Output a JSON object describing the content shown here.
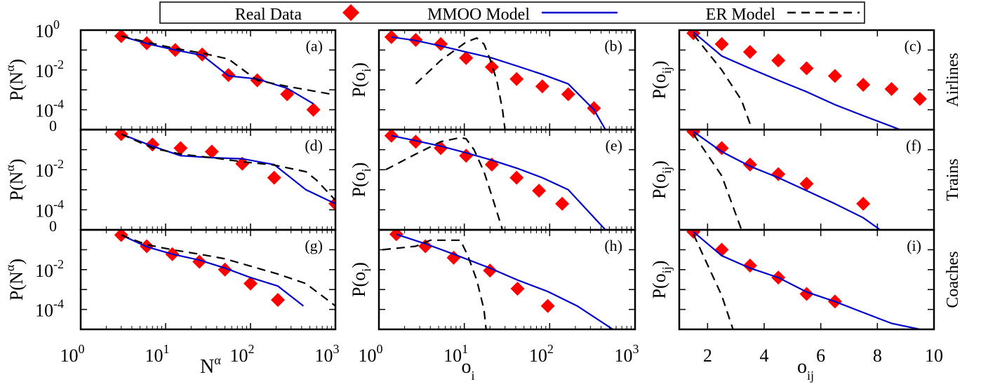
{
  "legend": {
    "entries": [
      {
        "label": "Real Data",
        "style": "diamond",
        "color": "#ff0000"
      },
      {
        "label": "MMOO Model",
        "style": "solid",
        "color": "#0000cc"
      },
      {
        "label": "ER Model",
        "style": "dashed",
        "color": "#000000"
      }
    ]
  },
  "rows": [
    "Airlines",
    "Trains",
    "Coaches"
  ],
  "columns": [
    {
      "ylabel_base": "P(N",
      "ylabel_sup": "α",
      "ylabel_close": ")",
      "xlabel_base": "N",
      "xlabel_sup": "α",
      "xlabel_sub": "",
      "xscale": "log",
      "xticks": [
        "0",
        "1",
        "2",
        "3"
      ]
    },
    {
      "ylabel_base": "P(o",
      "ylabel_sub": "i",
      "ylabel_close": ")",
      "xlabel_base": "o",
      "xlabel_sub": "i",
      "xscale": "log",
      "xticks": [
        "0",
        "1",
        "2",
        "3"
      ]
    },
    {
      "ylabel_base": "P(o",
      "ylabel_sub": "ij",
      "ylabel_close": ")",
      "xlabel_base": "o",
      "xlabel_sub": "ij",
      "xscale": "linear",
      "xticks": [
        "2",
        "4",
        "6",
        "8",
        "10"
      ]
    }
  ],
  "yticks_col0": [
    "0",
    "-2",
    "-4"
  ],
  "ytick_zero_label": "0",
  "tick_base": "10",
  "chart_data": [
    {
      "type": "line",
      "panel": "(a)",
      "row": "Airlines",
      "xscale": "log",
      "yscale": "log",
      "xlim": [
        1,
        1000
      ],
      "ylim": [
        1e-05,
        1
      ],
      "series": [
        {
          "name": "Real Data",
          "x": [
            3,
            6,
            13,
            27,
            55,
            120,
            270,
            550
          ],
          "y": [
            0.5,
            0.22,
            0.1,
            0.06,
            0.0055,
            0.003,
            0.0006,
            0.0001
          ]
        },
        {
          "name": "MMOO Model",
          "x": [
            3,
            6,
            13,
            27,
            55,
            120,
            270,
            550
          ],
          "y": [
            0.5,
            0.21,
            0.1,
            0.055,
            0.005,
            0.0035,
            0.0012,
            0.0002
          ]
        },
        {
          "name": "ER Model",
          "x": [
            3,
            6,
            13,
            27,
            55,
            120,
            270,
            900
          ],
          "y": [
            0.5,
            0.25,
            0.12,
            0.07,
            0.035,
            0.003,
            0.0015,
            0.0006
          ]
        }
      ]
    },
    {
      "type": "line",
      "panel": "(b)",
      "row": "Airlines",
      "xscale": "log",
      "yscale": "log",
      "xlim": [
        1,
        1000
      ],
      "ylim": [
        1e-05,
        1
      ],
      "series": [
        {
          "name": "Real Data",
          "x": [
            1.4,
            2.7,
            5.3,
            10.5,
            21,
            41,
            82,
            165,
            330
          ],
          "y": [
            0.45,
            0.32,
            0.2,
            0.04,
            0.014,
            0.0035,
            0.0015,
            0.0006,
            0.00012
          ]
        },
        {
          "name": "MMOO Model",
          "x": [
            1.4,
            2.7,
            5.3,
            10.5,
            21,
            41,
            82,
            165,
            330,
            450
          ],
          "y": [
            0.45,
            0.3,
            0.16,
            0.08,
            0.04,
            0.016,
            0.006,
            0.002,
            0.0001,
            1e-05
          ]
        },
        {
          "name": "ER Model",
          "x": [
            2.7,
            5.3,
            10.5,
            14,
            17,
            20,
            24,
            28,
            30
          ],
          "y": [
            0.002,
            0.03,
            0.25,
            0.4,
            0.2,
            0.035,
            0.003,
            0.0001,
            1e-05
          ]
        }
      ]
    },
    {
      "type": "line",
      "panel": "(c)",
      "row": "Airlines",
      "xscale": "linear",
      "yscale": "log",
      "xlim": [
        1,
        10
      ],
      "ylim": [
        1e-05,
        1
      ],
      "series": [
        {
          "name": "Real Data",
          "x": [
            1.5,
            2.5,
            3.5,
            4.5,
            5.5,
            6.5,
            7.5,
            8.5,
            9.5
          ],
          "y": [
            0.7,
            0.2,
            0.08,
            0.03,
            0.012,
            0.005,
            0.0018,
            0.0011,
            0.00035
          ]
        },
        {
          "name": "MMOO Model",
          "x": [
            1.5,
            2.5,
            3.5,
            4.5,
            5.5,
            6.5,
            7.5,
            8.8
          ],
          "y": [
            0.8,
            0.05,
            0.012,
            0.003,
            0.0008,
            0.00018,
            5e-05,
            1e-05
          ]
        },
        {
          "name": "ER Model",
          "x": [
            1.5,
            2.5,
            3.2,
            3.5,
            3.5
          ],
          "y": [
            0.6,
            0.01,
            0.0003,
            2e-05,
            1e-05
          ]
        }
      ]
    },
    {
      "type": "line",
      "panel": "(d)",
      "row": "Trains",
      "xscale": "log",
      "yscale": "log",
      "xlim": [
        1,
        1000
      ],
      "ylim": [
        1e-05,
        1
      ],
      "series": [
        {
          "name": "Real Data",
          "x": [
            3,
            7,
            15,
            35,
            80,
            190,
            1000
          ],
          "y": [
            0.6,
            0.18,
            0.12,
            0.08,
            0.02,
            0.004,
            0.0002
          ]
        },
        {
          "name": "MMOO Model",
          "x": [
            3,
            7,
            15,
            35,
            80,
            190,
            450,
            1000
          ],
          "y": [
            0.6,
            0.15,
            0.05,
            0.04,
            0.035,
            0.018,
            0.001,
            0.0002
          ]
        },
        {
          "name": "ER Model",
          "x": [
            3,
            7,
            15,
            35,
            80,
            190,
            450,
            600,
            1000
          ],
          "y": [
            0.6,
            0.12,
            0.06,
            0.04,
            0.025,
            0.017,
            0.008,
            0.003,
            0.0003
          ]
        }
      ]
    },
    {
      "type": "line",
      "panel": "(e)",
      "row": "Trains",
      "xscale": "log",
      "yscale": "log",
      "xlim": [
        1,
        1000
      ],
      "ylim": [
        1e-05,
        1
      ],
      "series": [
        {
          "name": "Real Data",
          "x": [
            1.4,
            2.7,
            5.3,
            10.5,
            21,
            41,
            75,
            140
          ],
          "y": [
            0.5,
            0.25,
            0.12,
            0.05,
            0.018,
            0.004,
            0.0009,
            0.0002
          ]
        },
        {
          "name": "MMOO Model",
          "x": [
            1.4,
            2.7,
            5.3,
            10.5,
            21,
            41,
            82,
            165,
            450
          ],
          "y": [
            0.5,
            0.28,
            0.15,
            0.07,
            0.03,
            0.012,
            0.004,
            0.001,
            1e-05
          ]
        },
        {
          "name": "ER Model",
          "x": [
            1.2,
            2.7,
            5.3,
            9,
            10.5,
            13,
            17,
            21,
            28
          ],
          "y": [
            0.01,
            0.06,
            0.25,
            0.4,
            0.35,
            0.1,
            0.008,
            0.0005,
            1e-05
          ]
        }
      ]
    },
    {
      "type": "line",
      "panel": "(f)",
      "row": "Trains",
      "xscale": "linear",
      "yscale": "log",
      "xlim": [
        1,
        10
      ],
      "ylim": [
        1e-05,
        1
      ],
      "series": [
        {
          "name": "Real Data",
          "x": [
            1.5,
            2.5,
            3.5,
            4.5,
            5.5,
            7.5
          ],
          "y": [
            0.8,
            0.12,
            0.018,
            0.006,
            0.002,
            0.0002
          ]
        },
        {
          "name": "MMOO Model",
          "x": [
            1.5,
            2.5,
            3.5,
            4.5,
            5.5,
            6.5,
            7.5,
            8.1
          ],
          "y": [
            0.8,
            0.08,
            0.015,
            0.004,
            0.0009,
            0.0002,
            4e-05,
            1e-05
          ]
        },
        {
          "name": "ER Model",
          "x": [
            1.5,
            2.5,
            3.2
          ],
          "y": [
            0.6,
            0.005,
            1e-05
          ]
        }
      ]
    },
    {
      "type": "line",
      "panel": "(g)",
      "row": "Coaches",
      "xscale": "log",
      "yscale": "log",
      "xlim": [
        1,
        1000
      ],
      "ylim": [
        1e-05,
        1
      ],
      "series": [
        {
          "name": "Real Data",
          "x": [
            3,
            6,
            12,
            25,
            50,
            100,
            210
          ],
          "y": [
            0.55,
            0.15,
            0.06,
            0.025,
            0.01,
            0.002,
            0.0003
          ]
        },
        {
          "name": "MMOO Model",
          "x": [
            3,
            6,
            12,
            25,
            50,
            100,
            210,
            420
          ],
          "y": [
            0.55,
            0.14,
            0.06,
            0.03,
            0.012,
            0.004,
            0.0015,
            0.00015
          ]
        },
        {
          "name": "ER Model",
          "x": [
            3,
            6,
            12,
            25,
            50,
            100,
            210,
            450,
            1000
          ],
          "y": [
            0.55,
            0.18,
            0.1,
            0.06,
            0.035,
            0.015,
            0.006,
            0.002,
            0.00015
          ]
        }
      ]
    },
    {
      "type": "line",
      "panel": "(h)",
      "row": "Coaches",
      "xscale": "log",
      "yscale": "log",
      "xlim": [
        1,
        1000
      ],
      "ylim": [
        1e-05,
        1
      ],
      "series": [
        {
          "name": "Real Data",
          "x": [
            1.6,
            3.5,
            7.5,
            20,
            42,
            95
          ],
          "y": [
            0.6,
            0.15,
            0.04,
            0.009,
            0.0011,
            0.00015
          ]
        },
        {
          "name": "MMOO Model",
          "x": [
            1.6,
            3.5,
            7.5,
            20,
            42,
            95,
            210,
            550
          ],
          "y": [
            0.6,
            0.2,
            0.06,
            0.012,
            0.003,
            0.0008,
            0.00015,
            1e-05
          ]
        },
        {
          "name": "ER Model",
          "x": [
            1.1,
            2.7,
            4,
            6.5,
            9,
            11,
            14,
            17,
            18
          ],
          "y": [
            0.1,
            0.15,
            0.3,
            0.3,
            0.3,
            0.05,
            0.003,
            0.0001,
            1e-05
          ]
        }
      ]
    },
    {
      "type": "line",
      "panel": "(i)",
      "row": "Coaches",
      "xscale": "linear",
      "yscale": "log",
      "xlim": [
        1,
        10
      ],
      "ylim": [
        1e-05,
        1
      ],
      "series": [
        {
          "name": "Real Data",
          "x": [
            1.5,
            2.5,
            3.5,
            4.5,
            5.5,
            6.5
          ],
          "y": [
            0.8,
            0.1,
            0.016,
            0.004,
            0.0006,
            0.00025
          ]
        },
        {
          "name": "MMOO Model",
          "x": [
            1.5,
            2.5,
            3.5,
            4.5,
            5.5,
            6.5,
            7.5,
            8.5,
            9.5
          ],
          "y": [
            0.8,
            0.05,
            0.012,
            0.004,
            0.00075,
            0.00025,
            7e-05,
            2e-05,
            1e-05
          ]
        },
        {
          "name": "ER Model",
          "x": [
            1.5,
            2.5,
            2.9
          ],
          "y": [
            0.6,
            0.0005,
            1e-05
          ]
        }
      ]
    }
  ]
}
